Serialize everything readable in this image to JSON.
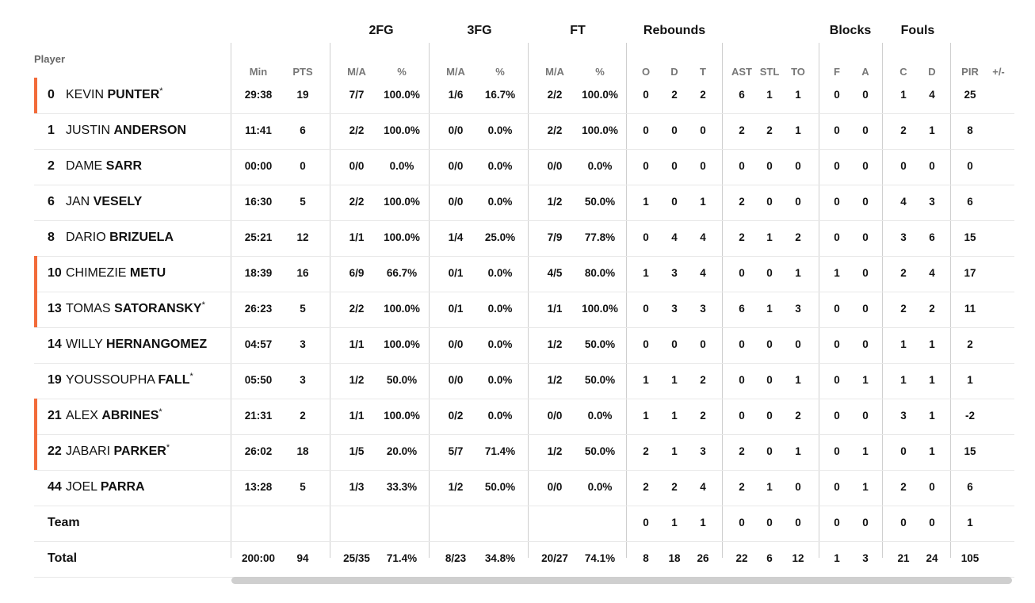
{
  "groups": [
    {
      "label": "2FG"
    },
    {
      "label": "3FG"
    },
    {
      "label": "FT"
    },
    {
      "label": "Rebounds"
    },
    {
      "label": "Blocks"
    },
    {
      "label": "Fouls"
    }
  ],
  "columns": {
    "player": "Player",
    "subheaders": [
      "Min",
      "PTS",
      "M/A",
      "%",
      "M/A",
      "%",
      "M/A",
      "%",
      "O",
      "D",
      "T",
      "AST",
      "STL",
      "TO",
      "F",
      "A",
      "C",
      "D",
      "PIR",
      "+/-"
    ]
  },
  "players": [
    {
      "number": "0",
      "first": "KEVIN",
      "last": "PUNTER",
      "starter": true,
      "star": "*",
      "stats": [
        "29:38",
        "19",
        "7/7",
        "100.0%",
        "1/6",
        "16.7%",
        "2/2",
        "100.0%",
        "0",
        "2",
        "2",
        "6",
        "1",
        "1",
        "0",
        "0",
        "1",
        "4",
        "25",
        ""
      ]
    },
    {
      "number": "1",
      "first": "JUSTIN",
      "last": "ANDERSON",
      "starter": false,
      "star": "",
      "stats": [
        "11:41",
        "6",
        "2/2",
        "100.0%",
        "0/0",
        "0.0%",
        "2/2",
        "100.0%",
        "0",
        "0",
        "0",
        "2",
        "2",
        "1",
        "0",
        "0",
        "2",
        "1",
        "8",
        ""
      ]
    },
    {
      "number": "2",
      "first": "DAME",
      "last": "SARR",
      "starter": false,
      "star": "",
      "stats": [
        "00:00",
        "0",
        "0/0",
        "0.0%",
        "0/0",
        "0.0%",
        "0/0",
        "0.0%",
        "0",
        "0",
        "0",
        "0",
        "0",
        "0",
        "0",
        "0",
        "0",
        "0",
        "0",
        ""
      ]
    },
    {
      "number": "6",
      "first": "JAN",
      "last": "VESELY",
      "starter": false,
      "star": "",
      "stats": [
        "16:30",
        "5",
        "2/2",
        "100.0%",
        "0/0",
        "0.0%",
        "1/2",
        "50.0%",
        "1",
        "0",
        "1",
        "2",
        "0",
        "0",
        "0",
        "0",
        "4",
        "3",
        "6",
        ""
      ]
    },
    {
      "number": "8",
      "first": "DARIO",
      "last": "BRIZUELA",
      "starter": false,
      "star": "",
      "stats": [
        "25:21",
        "12",
        "1/1",
        "100.0%",
        "1/4",
        "25.0%",
        "7/9",
        "77.8%",
        "0",
        "4",
        "4",
        "2",
        "1",
        "2",
        "0",
        "0",
        "3",
        "6",
        "15",
        ""
      ]
    },
    {
      "number": "10",
      "first": "CHIMEZIE",
      "last": "METU",
      "starter": true,
      "star": "",
      "stats": [
        "18:39",
        "16",
        "6/9",
        "66.7%",
        "0/1",
        "0.0%",
        "4/5",
        "80.0%",
        "1",
        "3",
        "4",
        "0",
        "0",
        "1",
        "1",
        "0",
        "2",
        "4",
        "17",
        ""
      ]
    },
    {
      "number": "13",
      "first": "TOMAS",
      "last": "SATORANSKY",
      "starter": true,
      "star": "*",
      "stats": [
        "26:23",
        "5",
        "2/2",
        "100.0%",
        "0/1",
        "0.0%",
        "1/1",
        "100.0%",
        "0",
        "3",
        "3",
        "6",
        "1",
        "3",
        "0",
        "0",
        "2",
        "2",
        "11",
        ""
      ]
    },
    {
      "number": "14",
      "first": "WILLY",
      "last": "HERNANGOMEZ",
      "starter": false,
      "star": "",
      "stats": [
        "04:57",
        "3",
        "1/1",
        "100.0%",
        "0/0",
        "0.0%",
        "1/2",
        "50.0%",
        "0",
        "0",
        "0",
        "0",
        "0",
        "0",
        "0",
        "0",
        "1",
        "1",
        "2",
        ""
      ]
    },
    {
      "number": "19",
      "first": "YOUSSOUPHA",
      "last": "FALL",
      "starter": false,
      "star": "*",
      "stats": [
        "05:50",
        "3",
        "1/2",
        "50.0%",
        "0/0",
        "0.0%",
        "1/2",
        "50.0%",
        "1",
        "1",
        "2",
        "0",
        "0",
        "1",
        "0",
        "1",
        "1",
        "1",
        "1",
        ""
      ]
    },
    {
      "number": "21",
      "first": "ALEX",
      "last": "ABRINES",
      "starter": true,
      "star": "*",
      "stats": [
        "21:31",
        "2",
        "1/1",
        "100.0%",
        "0/2",
        "0.0%",
        "0/0",
        "0.0%",
        "1",
        "1",
        "2",
        "0",
        "0",
        "2",
        "0",
        "0",
        "3",
        "1",
        "-2",
        ""
      ]
    },
    {
      "number": "22",
      "first": "JABARI",
      "last": "PARKER",
      "starter": true,
      "star": "*",
      "stats": [
        "26:02",
        "18",
        "1/5",
        "20.0%",
        "5/7",
        "71.4%",
        "1/2",
        "50.0%",
        "2",
        "1",
        "3",
        "2",
        "0",
        "1",
        "0",
        "1",
        "0",
        "1",
        "15",
        ""
      ]
    },
    {
      "number": "44",
      "first": "JOEL",
      "last": "PARRA",
      "starter": false,
      "star": "",
      "stats": [
        "13:28",
        "5",
        "1/3",
        "33.3%",
        "1/2",
        "50.0%",
        "0/0",
        "0.0%",
        "2",
        "2",
        "4",
        "2",
        "1",
        "0",
        "0",
        "1",
        "2",
        "0",
        "6",
        ""
      ]
    }
  ],
  "team": {
    "label": "Team",
    "stats": [
      "",
      "",
      "",
      "",
      "",
      "",
      "",
      "",
      "0",
      "1",
      "1",
      "0",
      "0",
      "0",
      "0",
      "0",
      "0",
      "0",
      "1",
      ""
    ]
  },
  "total": {
    "label": "Total",
    "stats": [
      "200:00",
      "94",
      "25/35",
      "71.4%",
      "8/23",
      "34.8%",
      "20/27",
      "74.1%",
      "8",
      "18",
      "26",
      "22",
      "6",
      "12",
      "1",
      "3",
      "21",
      "24",
      "105",
      ""
    ]
  },
  "colors": {
    "starter_accent": "#f26b3a",
    "divider": "#cfcfcf",
    "scrollbar": "#cfcfcf"
  }
}
